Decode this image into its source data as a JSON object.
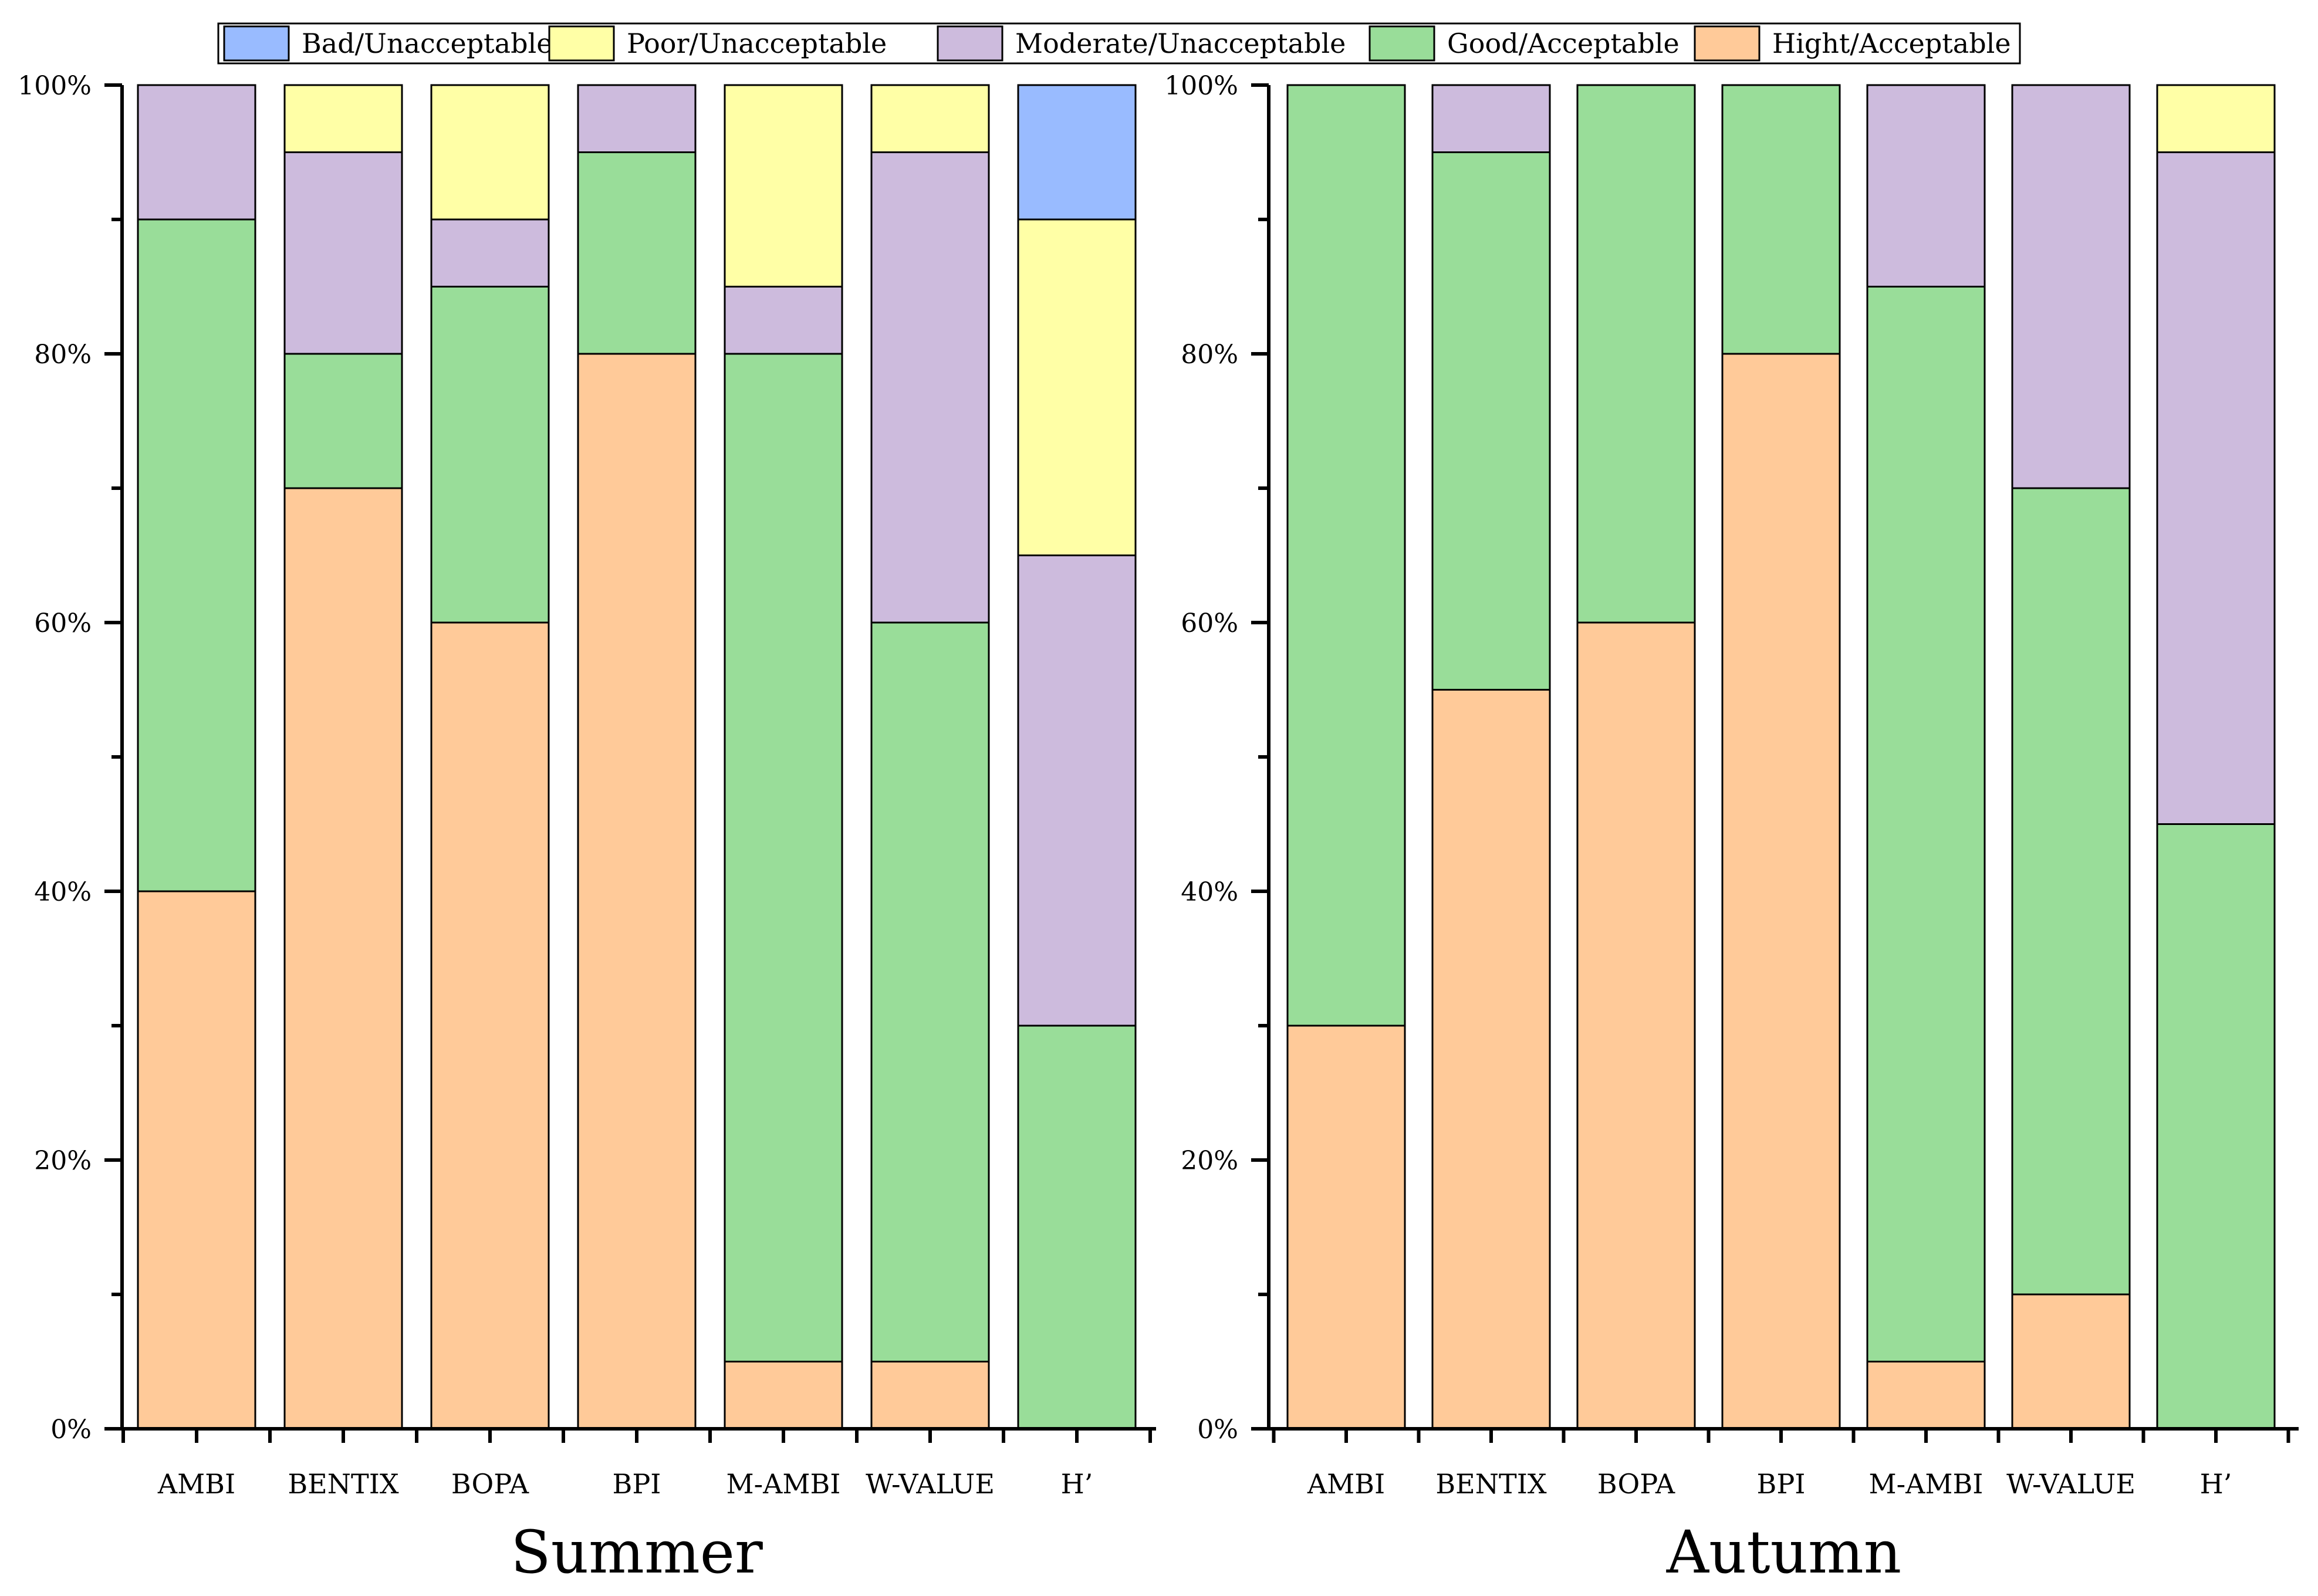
{
  "legend": [
    {
      "key": "bad",
      "label": "Bad/Unacceptable",
      "color": "#99BBFF"
    },
    {
      "key": "poor",
      "label": "Poor/Unacceptable",
      "color": "#FFFFA6"
    },
    {
      "key": "moderate",
      "label": "Moderate/Unacceptable",
      "color": "#CDBBDD"
    },
    {
      "key": "good",
      "label": "Good/Acceptable",
      "color": "#99DD99"
    },
    {
      "key": "high",
      "label": "Hight/Acceptable",
      "color": "#FFCA99"
    }
  ],
  "chart_data": [
    {
      "type": "bar",
      "stacked": true,
      "title": "Summer",
      "xlabel": "",
      "ylabel": "",
      "ylim": [
        0,
        100
      ],
      "y_ticks": [
        "0%",
        "20%",
        "40%",
        "60%",
        "80%",
        "100%"
      ],
      "categories": [
        "AMBI",
        "BENTIX",
        "BOPA",
        "BPI",
        "M-AMBI",
        "W-VALUE",
        "H’"
      ],
      "series": [
        {
          "name": "Hight/Acceptable",
          "key": "high",
          "values": [
            40,
            70,
            60,
            80,
            5,
            5,
            0
          ]
        },
        {
          "name": "Good/Acceptable",
          "key": "good",
          "values": [
            50,
            10,
            25,
            15,
            75,
            55,
            30
          ]
        },
        {
          "name": "Moderate/Unacceptable",
          "key": "moderate",
          "values": [
            10,
            15,
            5,
            5,
            5,
            35,
            35
          ]
        },
        {
          "name": "Poor/Unacceptable",
          "key": "poor",
          "values": [
            0,
            5,
            10,
            0,
            15,
            5,
            25
          ]
        },
        {
          "name": "Bad/Unacceptable",
          "key": "bad",
          "values": [
            0,
            0,
            0,
            0,
            0,
            0,
            10
          ]
        }
      ]
    },
    {
      "type": "bar",
      "stacked": true,
      "title": "Autumn",
      "xlabel": "",
      "ylabel": "",
      "ylim": [
        0,
        100
      ],
      "y_ticks": [
        "0%",
        "20%",
        "40%",
        "60%",
        "80%",
        "100%"
      ],
      "categories": [
        "AMBI",
        "BENTIX",
        "BOPA",
        "BPI",
        "M-AMBI",
        "W-VALUE",
        "H’"
      ],
      "series": [
        {
          "name": "Hight/Acceptable",
          "key": "high",
          "values": [
            30,
            55,
            60,
            80,
            5,
            10,
            0
          ]
        },
        {
          "name": "Good/Acceptable",
          "key": "good",
          "values": [
            70,
            40,
            40,
            20,
            80,
            60,
            45
          ]
        },
        {
          "name": "Moderate/Unacceptable",
          "key": "moderate",
          "values": [
            0,
            5,
            0,
            0,
            15,
            30,
            50
          ]
        },
        {
          "name": "Poor/Unacceptable",
          "key": "poor",
          "values": [
            0,
            0,
            0,
            0,
            0,
            0,
            5
          ]
        },
        {
          "name": "Bad/Unacceptable",
          "key": "bad",
          "values": [
            0,
            0,
            0,
            0,
            0,
            0,
            0
          ]
        }
      ]
    }
  ]
}
